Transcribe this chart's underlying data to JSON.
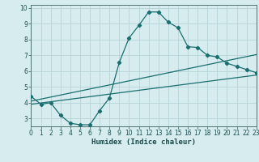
{
  "xlabel": "Humidex (Indice chaleur)",
  "background_color": "#d6ecee",
  "grid_color": "#b8d4d8",
  "line_color": "#1a6e6e",
  "x_min": 0,
  "x_max": 23,
  "y_min": 2.5,
  "y_max": 10.2,
  "curve1_x": [
    0,
    1,
    2,
    3,
    4,
    5,
    6,
    7,
    8,
    9,
    10,
    11,
    12,
    13,
    14,
    15,
    16,
    17,
    18,
    19,
    20,
    21,
    22,
    23
  ],
  "curve1_y": [
    4.4,
    3.9,
    4.0,
    3.2,
    2.7,
    2.6,
    2.6,
    3.5,
    4.3,
    6.55,
    8.1,
    8.9,
    9.75,
    9.75,
    9.1,
    8.75,
    7.55,
    7.5,
    7.0,
    6.9,
    6.5,
    6.3,
    6.1,
    5.9
  ],
  "curve2_x": [
    0,
    23
  ],
  "curve2_y": [
    4.1,
    7.05
  ],
  "curve3_x": [
    0,
    23
  ],
  "curve3_y": [
    3.9,
    5.75
  ],
  "yticks": [
    3,
    4,
    5,
    6,
    7,
    8,
    9,
    10
  ],
  "xticks": [
    0,
    1,
    2,
    3,
    4,
    5,
    6,
    7,
    8,
    9,
    10,
    11,
    12,
    13,
    14,
    15,
    16,
    17,
    18,
    19,
    20,
    21,
    22,
    23
  ],
  "tick_fontsize": 5.5,
  "xlabel_fontsize": 6.5
}
